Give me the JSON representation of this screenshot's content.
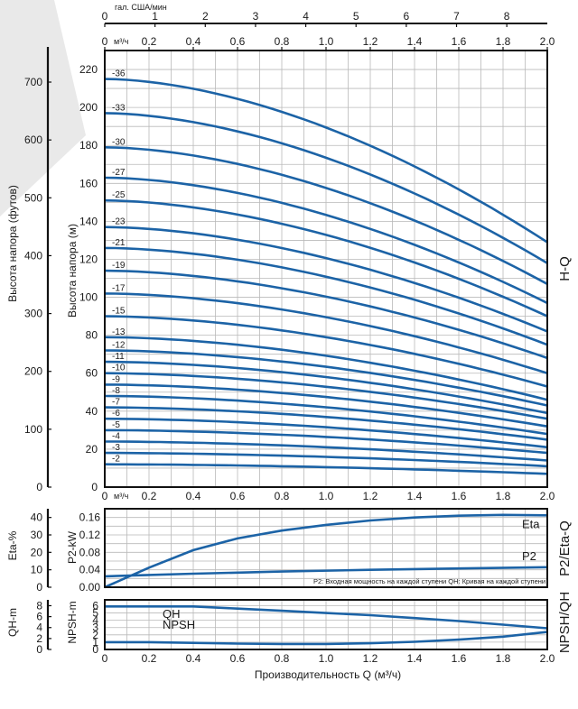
{
  "chart_data": [
    {
      "id": "hq",
      "type": "line",
      "side_label": "H-Q",
      "ylabel_m": "Высота напора (м)",
      "ylabel_ft": "Высота напора (футов)",
      "x_top_gpm_label": "гал. США/мин",
      "x_m3h_unit": "м³/ч",
      "x_top_gpm_ticks": [
        "0",
        "1",
        "2",
        "3",
        "4",
        "5",
        "6",
        "7",
        "8"
      ],
      "x_ticks": [
        "0",
        "0.2",
        "0.4",
        "0.6",
        "0.8",
        "1.0",
        "1.2",
        "1.4",
        "1.6",
        "1.8",
        "2.0"
      ],
      "y_ticks_m": [
        "0",
        "20",
        "40",
        "60",
        "80",
        "100",
        "120",
        "140",
        "160",
        "180",
        "200",
        "220"
      ],
      "y_ticks_ft": [
        "0",
        "100",
        "200",
        "300",
        "400",
        "500",
        "600",
        "700"
      ],
      "xlim": [
        0,
        2.0
      ],
      "ylim": [
        0,
        230
      ],
      "grid": true,
      "series": [
        {
          "name": "-36",
          "label": "-36",
          "shutoff": 215,
          "end": 129
        },
        {
          "name": "-33",
          "label": "-33",
          "shutoff": 197,
          "end": 118
        },
        {
          "name": "-30",
          "label": "-30",
          "shutoff": 179,
          "end": 107
        },
        {
          "name": "-27",
          "label": "-27",
          "shutoff": 163,
          "end": 97
        },
        {
          "name": "-25",
          "label": "-25",
          "shutoff": 151,
          "end": 90
        },
        {
          "name": "-23",
          "label": "-23",
          "shutoff": 137,
          "end": 82
        },
        {
          "name": "-21",
          "label": "-21",
          "shutoff": 126,
          "end": 75
        },
        {
          "name": "-19",
          "label": "-19",
          "shutoff": 114,
          "end": 68
        },
        {
          "name": "-17",
          "label": "-17",
          "shutoff": 102,
          "end": 60
        },
        {
          "name": "-15",
          "label": "-15",
          "shutoff": 90,
          "end": 53
        },
        {
          "name": "-13",
          "label": "-13",
          "shutoff": 79,
          "end": 46
        },
        {
          "name": "-12",
          "label": "-12",
          "shutoff": 72,
          "end": 43
        },
        {
          "name": "-11",
          "label": "-11",
          "shutoff": 66,
          "end": 39
        },
        {
          "name": "-10",
          "label": "-10",
          "shutoff": 60,
          "end": 36
        },
        {
          "name": "-9",
          "label": "-9",
          "shutoff": 54,
          "end": 32
        },
        {
          "name": "-8",
          "label": "-8",
          "shutoff": 48,
          "end": 28
        },
        {
          "name": "-7",
          "label": "-7",
          "shutoff": 42,
          "end": 25
        },
        {
          "name": "-6",
          "label": "-6",
          "shutoff": 36,
          "end": 21
        },
        {
          "name": "-5",
          "label": "-5",
          "shutoff": 30,
          "end": 18
        },
        {
          "name": "-4",
          "label": "-4",
          "shutoff": 24,
          "end": 14
        },
        {
          "name": "-3",
          "label": "-3",
          "shutoff": 18,
          "end": 11
        },
        {
          "name": "-2",
          "label": "-2",
          "shutoff": 12,
          "end": 7
        }
      ]
    },
    {
      "id": "p2eta",
      "type": "line",
      "side_label": "P2/Eta-Q",
      "ylabel_eta": "Eta-%",
      "ylabel_p2": "P2-kW",
      "y_ticks_eta": [
        "0",
        "10",
        "20",
        "30",
        "40"
      ],
      "y_ticks_p2": [
        "0.00",
        "0.04",
        "0.08",
        "0.12",
        "0.16"
      ],
      "xlim": [
        0,
        2.0
      ],
      "ylim_p2": [
        0,
        0.18
      ],
      "grid": true,
      "note": "P2: Входная мощность на каждой ступени QH: Кривая на каждой ступени",
      "series": [
        {
          "name": "Eta",
          "x": [
            0,
            0.2,
            0.4,
            0.6,
            0.8,
            1.0,
            1.2,
            1.4,
            1.6,
            1.8,
            2.0
          ],
          "y_kw_scale": [
            0,
            0.045,
            0.085,
            0.112,
            0.13,
            0.143,
            0.153,
            0.16,
            0.164,
            0.166,
            0.165
          ]
        },
        {
          "name": "P2",
          "x": [
            0,
            0.4,
            0.8,
            1.2,
            1.6,
            2.0
          ],
          "y": [
            0.025,
            0.031,
            0.036,
            0.04,
            0.043,
            0.046
          ]
        }
      ]
    },
    {
      "id": "npshqh",
      "type": "line",
      "side_label": "NPSH/QH",
      "ylabel_qh": "QH-m",
      "ylabel_npsh": "NPSH-m",
      "y_ticks_qh": [
        "0",
        "2",
        "4",
        "6",
        "8"
      ],
      "y_ticks_npsh": [
        "0",
        "1",
        "2",
        "3",
        "4",
        "5",
        "6"
      ],
      "x_ticks": [
        "0",
        "0.2",
        "0.4",
        "0.6",
        "0.8",
        "1.0",
        "1.2",
        "1.4",
        "1.6",
        "1.8",
        "2.0"
      ],
      "xlabel": "Производительность Q (м³/ч)",
      "xlim": [
        0,
        2.0
      ],
      "ylim": [
        0,
        6.8
      ],
      "grid": true,
      "series": [
        {
          "name": "QH",
          "x": [
            0,
            0.2,
            0.4,
            0.6,
            0.8,
            1.0,
            1.2,
            1.4,
            1.6,
            1.8,
            2.0
          ],
          "y": [
            5.9,
            5.9,
            5.9,
            5.6,
            5.3,
            5.0,
            4.7,
            4.3,
            3.9,
            3.4,
            2.9
          ]
        },
        {
          "name": "NPSH",
          "x": [
            0,
            0.2,
            0.4,
            0.6,
            0.8,
            1.0,
            1.2,
            1.4,
            1.6,
            1.8,
            2.0
          ],
          "y": [
            1.0,
            1.0,
            0.9,
            0.8,
            0.75,
            0.75,
            0.85,
            1.05,
            1.35,
            1.75,
            2.4
          ]
        }
      ]
    }
  ]
}
